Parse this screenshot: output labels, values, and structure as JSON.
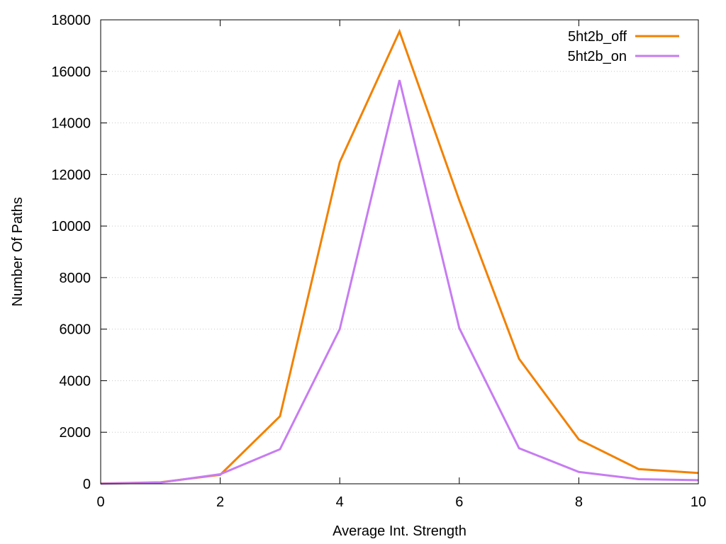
{
  "chart_data": {
    "type": "line",
    "title": "",
    "xlabel": "Average Int. Strength",
    "ylabel": "Number Of Paths",
    "xlim": [
      0,
      10
    ],
    "ylim": [
      0,
      18000
    ],
    "xticks": [
      0,
      2,
      4,
      6,
      8,
      10
    ],
    "yticks": [
      0,
      2000,
      4000,
      6000,
      8000,
      10000,
      12000,
      14000,
      16000,
      18000
    ],
    "x": [
      0,
      1,
      2,
      3,
      4,
      5,
      6,
      7,
      8,
      9,
      10
    ],
    "grid": "y-dotted",
    "legend_position": "top-right",
    "series": [
      {
        "name": "5ht2b_off",
        "color": "#f28100",
        "values": [
          10,
          60,
          350,
          2620,
          12480,
          17550,
          11000,
          4850,
          1720,
          570,
          420
        ]
      },
      {
        "name": "5ht2b_on",
        "color": "#c77cf2",
        "values": [
          5,
          50,
          370,
          1340,
          6000,
          15660,
          6040,
          1380,
          460,
          180,
          140
        ]
      }
    ]
  }
}
